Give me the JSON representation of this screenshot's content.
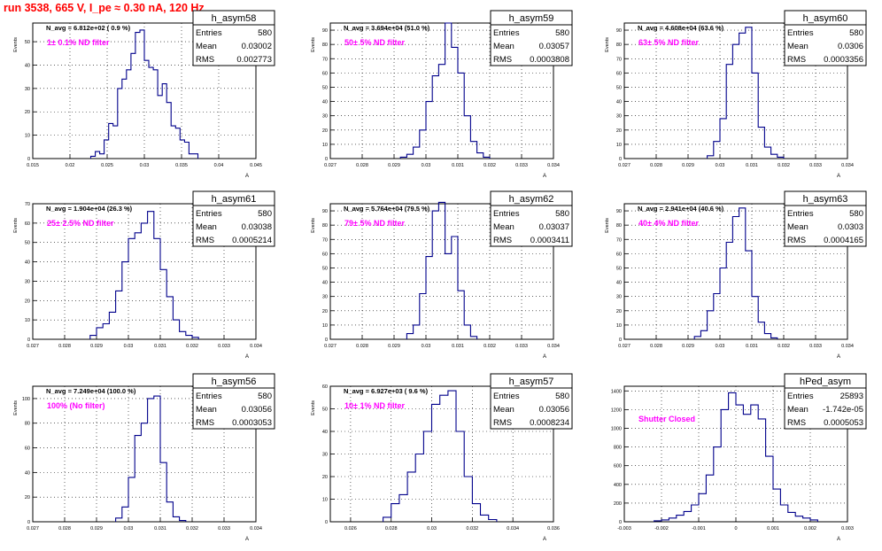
{
  "run_title": "run 3538,   665 V, I_pe ≈ 0.30 nA, 120 Hz",
  "colors": {
    "hist_line": "#00008b",
    "note_text": "#ff00ff",
    "title_text": "#ff0000",
    "grid": "#000000"
  },
  "stats_labels": {
    "entries": "Entries",
    "mean": "Mean",
    "rms": "RMS"
  },
  "chart_data": [
    {
      "type": "histogram",
      "name": "h_asym58",
      "ylabel": "Events",
      "xlabel": "A",
      "navg": "N_avg = 6.812e+02 ( 0.9 %)",
      "note": "1± 0.1% ND filter",
      "entries": "580",
      "mean": "0.03002",
      "rms": "0.002773",
      "xlim": [
        0.015,
        0.045
      ],
      "ylim": [
        0,
        58
      ],
      "xticks": [
        0.015,
        0.02,
        0.025,
        0.03,
        0.035,
        0.04,
        0.045
      ],
      "xticklabels": [
        "0.015",
        "0.02",
        "0.025",
        "0.03",
        "0.035",
        "0.04",
        "0.045"
      ],
      "yticks": [
        0,
        10,
        20,
        30,
        40,
        50
      ],
      "yticklabels": [
        "0",
        "10",
        "20",
        "30",
        "40",
        "50"
      ],
      "bin_edges": [
        0.0228,
        0.0234,
        0.024,
        0.0246,
        0.0252,
        0.0258,
        0.0264,
        0.027,
        0.0276,
        0.0282,
        0.0288,
        0.0294,
        0.03,
        0.0306,
        0.0312,
        0.0318,
        0.0324,
        0.033,
        0.0336,
        0.0342,
        0.0348,
        0.0354,
        0.036,
        0.0366,
        0.0372
      ],
      "counts": [
        1,
        3,
        2,
        8,
        15,
        14,
        30,
        34,
        38,
        45,
        54,
        55,
        42,
        39,
        38,
        27,
        32,
        24,
        14,
        13,
        8,
        7,
        2,
        2
      ]
    },
    {
      "type": "histogram",
      "name": "h_asym59",
      "ylabel": "Events",
      "xlabel": "A",
      "navg": "N_avg = 3.694e+04 (51.0 %)",
      "note": "50± 5% ND filter",
      "entries": "580",
      "mean": "0.03057",
      "rms": "0.0003808",
      "xlim": [
        0.027,
        0.034
      ],
      "ylim": [
        0,
        95
      ],
      "xticks": [
        0.027,
        0.028,
        0.029,
        0.03,
        0.031,
        0.032,
        0.033,
        0.034
      ],
      "xticklabels": [
        "0.027",
        "0.028",
        "0.029",
        "0.03",
        "0.031",
        "0.032",
        "0.033",
        "0.034"
      ],
      "yticks": [
        0,
        10,
        20,
        30,
        40,
        50,
        60,
        70,
        80,
        90
      ],
      "yticklabels": [
        "0",
        "10",
        "20",
        "30",
        "40",
        "50",
        "60",
        "70",
        "80",
        "90"
      ],
      "bin_edges": [
        0.0292,
        0.0294,
        0.0296,
        0.0298,
        0.03,
        0.0302,
        0.0304,
        0.0306,
        0.0308,
        0.031,
        0.0312,
        0.0314,
        0.0316,
        0.0318,
        0.032
      ],
      "counts": [
        1,
        3,
        8,
        20,
        40,
        58,
        66,
        95,
        78,
        60,
        30,
        12,
        4,
        1
      ]
    },
    {
      "type": "histogram",
      "name": "h_asym60",
      "ylabel": "Events",
      "xlabel": "A",
      "navg": "N_avg = 4.608e+04 (63.6 %)",
      "note": "63± 5% ND filter",
      "entries": "580",
      "mean": "0.0306",
      "rms": "0.0003356",
      "xlim": [
        0.027,
        0.034
      ],
      "ylim": [
        0,
        95
      ],
      "xticks": [
        0.027,
        0.028,
        0.029,
        0.03,
        0.031,
        0.032,
        0.033,
        0.034
      ],
      "xticklabels": [
        "0.027",
        "0.028",
        "0.029",
        "0.03",
        "0.031",
        "0.032",
        "0.033",
        "0.034"
      ],
      "yticks": [
        0,
        10,
        20,
        30,
        40,
        50,
        60,
        70,
        80,
        90
      ],
      "yticklabels": [
        "0",
        "10",
        "20",
        "30",
        "40",
        "50",
        "60",
        "70",
        "80",
        "90"
      ],
      "bin_edges": [
        0.0296,
        0.0298,
        0.03,
        0.0302,
        0.0304,
        0.0306,
        0.0308,
        0.031,
        0.0312,
        0.0314,
        0.0316,
        0.0318,
        0.032
      ],
      "counts": [
        2,
        12,
        28,
        66,
        80,
        88,
        92,
        60,
        22,
        8,
        3,
        1
      ]
    },
    {
      "type": "histogram",
      "name": "h_asym61",
      "ylabel": "Events",
      "xlabel": "A",
      "navg": "N_avg = 1.904e+04 (26.3 %)",
      "note": "25± 2.5% ND filter",
      "entries": "580",
      "mean": "0.03038",
      "rms": "0.0005214",
      "xlim": [
        0.027,
        0.034
      ],
      "ylim": [
        0,
        70
      ],
      "xticks": [
        0.027,
        0.028,
        0.029,
        0.03,
        0.031,
        0.032,
        0.033,
        0.034
      ],
      "xticklabels": [
        "0.027",
        "0.028",
        "0.029",
        "0.03",
        "0.031",
        "0.032",
        "0.033",
        "0.034"
      ],
      "yticks": [
        0,
        10,
        20,
        30,
        40,
        50,
        60,
        70
      ],
      "yticklabels": [
        "0",
        "10",
        "20",
        "30",
        "40",
        "50",
        "60",
        "70"
      ],
      "bin_edges": [
        0.0288,
        0.029,
        0.0292,
        0.0294,
        0.0296,
        0.0298,
        0.03,
        0.0302,
        0.0304,
        0.0306,
        0.0308,
        0.031,
        0.0312,
        0.0314,
        0.0316,
        0.0318,
        0.032,
        0.0322
      ],
      "counts": [
        2,
        6,
        8,
        14,
        25,
        40,
        52,
        55,
        60,
        66,
        52,
        36,
        22,
        10,
        4,
        2,
        1
      ]
    },
    {
      "type": "histogram",
      "name": "h_asym62",
      "ylabel": "Events",
      "xlabel": "A",
      "navg": "N_avg = 5.764e+04 (79.5 %)",
      "note": "79± 5% ND filter",
      "entries": "580",
      "mean": "0.03037",
      "rms": "0.0003411",
      "xlim": [
        0.027,
        0.034
      ],
      "ylim": [
        0,
        95
      ],
      "xticks": [
        0.027,
        0.028,
        0.029,
        0.03,
        0.031,
        0.032,
        0.033,
        0.034
      ],
      "xticklabels": [
        "0.027",
        "0.028",
        "0.029",
        "0.03",
        "0.031",
        "0.032",
        "0.033",
        "0.034"
      ],
      "yticks": [
        0,
        10,
        20,
        30,
        40,
        50,
        60,
        70,
        80,
        90
      ],
      "yticklabels": [
        "0",
        "10",
        "20",
        "30",
        "40",
        "50",
        "60",
        "70",
        "80",
        "90"
      ],
      "bin_edges": [
        0.0294,
        0.0296,
        0.0298,
        0.03,
        0.0302,
        0.0304,
        0.0306,
        0.0308,
        0.031,
        0.0312,
        0.0314,
        0.0316
      ],
      "counts": [
        4,
        10,
        32,
        58,
        90,
        96,
        60,
        72,
        34,
        10,
        2
      ]
    },
    {
      "type": "histogram",
      "name": "h_asym63",
      "ylabel": "Events",
      "xlabel": "A",
      "navg": "N_avg = 2.941e+04 (40.6 %)",
      "note": "40± 4% ND filter",
      "entries": "580",
      "mean": "0.0303",
      "rms": "0.0004165",
      "xlim": [
        0.027,
        0.034
      ],
      "ylim": [
        0,
        95
      ],
      "xticks": [
        0.027,
        0.028,
        0.029,
        0.03,
        0.031,
        0.032,
        0.033,
        0.034
      ],
      "xticklabels": [
        "0.027",
        "0.028",
        "0.029",
        "0.03",
        "0.031",
        "0.032",
        "0.033",
        "0.034"
      ],
      "yticks": [
        0,
        10,
        20,
        30,
        40,
        50,
        60,
        70,
        80,
        90
      ],
      "yticklabels": [
        "0",
        "10",
        "20",
        "30",
        "40",
        "50",
        "60",
        "70",
        "80",
        "90"
      ],
      "bin_edges": [
        0.0292,
        0.0294,
        0.0296,
        0.0298,
        0.03,
        0.0302,
        0.0304,
        0.0306,
        0.0308,
        0.031,
        0.0312,
        0.0314,
        0.0316,
        0.0318
      ],
      "counts": [
        2,
        6,
        20,
        32,
        50,
        68,
        86,
        92,
        62,
        30,
        12,
        4,
        1
      ]
    },
    {
      "type": "histogram",
      "name": "h_asym56",
      "ylabel": "Events",
      "xlabel": "A",
      "navg": "N_avg = 7.249e+04 (100.0 %)",
      "note": "100% (No filter)",
      "entries": "580",
      "mean": "0.03056",
      "rms": "0.0003053",
      "xlim": [
        0.027,
        0.034
      ],
      "ylim": [
        0,
        110
      ],
      "xticks": [
        0.027,
        0.028,
        0.029,
        0.03,
        0.031,
        0.032,
        0.033,
        0.034
      ],
      "xticklabels": [
        "0.027",
        "0.028",
        "0.029",
        "0.03",
        "0.031",
        "0.032",
        "0.033",
        "0.034"
      ],
      "yticks": [
        0,
        20,
        40,
        60,
        80,
        100
      ],
      "yticklabels": [
        "0",
        "20",
        "40",
        "60",
        "80",
        "100"
      ],
      "bin_edges": [
        0.0296,
        0.0298,
        0.03,
        0.0302,
        0.0304,
        0.0306,
        0.0308,
        0.031,
        0.0312,
        0.0314,
        0.0316,
        0.0318
      ],
      "counts": [
        3,
        12,
        36,
        70,
        80,
        100,
        102,
        48,
        16,
        4,
        1
      ]
    },
    {
      "type": "histogram",
      "name": "h_asym57",
      "ylabel": "Events",
      "xlabel": "A",
      "navg": "N_avg = 6.927e+03 ( 9.6 %)",
      "note": "10± 1% ND filter",
      "entries": "580",
      "mean": "0.03056",
      "rms": "0.0008234",
      "xlim": [
        0.025,
        0.036
      ],
      "ylim": [
        0,
        60
      ],
      "xticks": [
        0.026,
        0.028,
        0.03,
        0.032,
        0.034,
        0.036
      ],
      "xticklabels": [
        "0.026",
        "0.028",
        "0.03",
        "0.032",
        "0.034",
        "0.036"
      ],
      "yticks": [
        0,
        10,
        20,
        30,
        40,
        50,
        60
      ],
      "yticklabels": [
        "0",
        "10",
        "20",
        "30",
        "40",
        "50",
        "60"
      ],
      "bin_edges": [
        0.0276,
        0.028,
        0.0284,
        0.0288,
        0.0292,
        0.0296,
        0.03,
        0.0304,
        0.0308,
        0.0312,
        0.0316,
        0.032,
        0.0324,
        0.0328,
        0.0332
      ],
      "counts": [
        2,
        8,
        12,
        22,
        30,
        40,
        52,
        56,
        58,
        40,
        20,
        8,
        3,
        1
      ]
    },
    {
      "type": "histogram",
      "name": "hPed_asym",
      "ylabel": "",
      "xlabel": "A",
      "navg": "",
      "note": "Shutter Closed",
      "entries": "25893",
      "mean": "-1.742e-05",
      "rms": "0.0005053",
      "xlim": [
        -0.003,
        0.003
      ],
      "ylim": [
        0,
        1450
      ],
      "xticks": [
        -0.003,
        -0.002,
        -0.001,
        0,
        0.001,
        0.002,
        0.003
      ],
      "xticklabels": [
        "-0.003",
        "-0.002",
        "-0.001",
        "0",
        "0.001",
        "0.002",
        "0.003"
      ],
      "yticks": [
        0,
        200,
        400,
        600,
        800,
        1000,
        1200,
        1400
      ],
      "yticklabels": [
        "0",
        "200",
        "400",
        "600",
        "800",
        "1000",
        "1200",
        "1400"
      ],
      "bin_edges": [
        -0.0022,
        -0.002,
        -0.0018,
        -0.0016,
        -0.0014,
        -0.0012,
        -0.001,
        -0.0008,
        -0.0006,
        -0.0004,
        -0.0002,
        0,
        0.0002,
        0.0004,
        0.0006,
        0.0008,
        0.001,
        0.0012,
        0.0014,
        0.0016,
        0.0018,
        0.002,
        0.0022
      ],
      "counts": [
        10,
        20,
        40,
        70,
        110,
        180,
        300,
        500,
        800,
        1200,
        1380,
        1250,
        1150,
        1250,
        1100,
        700,
        350,
        180,
        100,
        60,
        40,
        20
      ]
    }
  ]
}
